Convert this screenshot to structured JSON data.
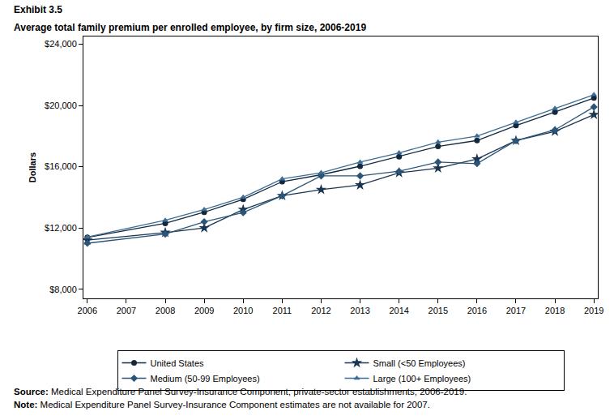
{
  "chart_data": {
    "type": "line",
    "title": "Exhibit 3.5",
    "subtitle": "Average total family premium per enrolled employee, by firm size, 2006-2019",
    "y_label": "Dollars",
    "x": [
      2006,
      2008,
      2009,
      2010,
      2011,
      2012,
      2013,
      2014,
      2015,
      2016,
      2017,
      2018,
      2019
    ],
    "series": [
      {
        "name": "United States",
        "color": "#13283d",
        "marker": "circle",
        "values": [
          11381,
          12298,
          13027,
          13871,
          15022,
          15473,
          16029,
          16655,
          17322,
          17710,
          18687,
          19565,
          20486
        ]
      },
      {
        "name": "Small (<50 Employees)",
        "color": "#1a3550",
        "marker": "star",
        "values": [
          11200,
          11700,
          12000,
          13200,
          14100,
          14500,
          14800,
          15600,
          15900,
          16500,
          17700,
          18300,
          19400
        ]
      },
      {
        "name": "Medium (50-99 Employees)",
        "color": "#2a5578",
        "marker": "diamond",
        "values": [
          11000,
          11600,
          12400,
          13000,
          14100,
          15400,
          15400,
          15700,
          16300,
          16200,
          17700,
          18400,
          19900
        ]
      },
      {
        "name": "Large (100+ Employees)",
        "color": "#3b6d96",
        "marker": "triangle-up",
        "values": [
          11400,
          12500,
          13200,
          14000,
          15200,
          15600,
          16300,
          16900,
          17600,
          18000,
          18900,
          19800,
          20700
        ]
      }
    ],
    "xlim": [
      2005.9,
      2019.1
    ],
    "xticks": [
      2006,
      2007,
      2008,
      2009,
      2010,
      2011,
      2012,
      2013,
      2014,
      2015,
      2016,
      2017,
      2018,
      2019
    ],
    "ylim": [
      7400,
      24500
    ],
    "yticks": [
      {
        "value": 8000,
        "label": "$8,000"
      },
      {
        "value": 12000,
        "label": "$12,000"
      },
      {
        "value": 16000,
        "label": "$16,000"
      },
      {
        "value": 20000,
        "label": "$20,000"
      },
      {
        "value": 24000,
        "label": "$24,000"
      }
    ],
    "grid": false,
    "legend": "bottom",
    "source": "Source: Medical Expenditure Panel Survey-Insurance Component, private-sector establishments, 2006-2019.",
    "note": "Note: Medical Expenditure Panel Survey-Insurance Component estimates are not available for 2007."
  }
}
